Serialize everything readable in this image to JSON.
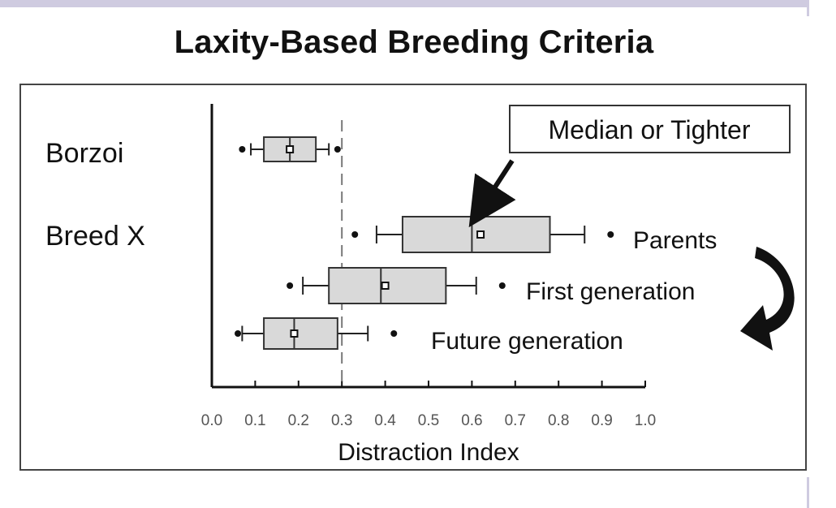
{
  "chart_data": {
    "type": "boxplot",
    "title": "Laxity-Based Breeding Criteria",
    "xlabel": "Distraction Index",
    "xlim": [
      0.0,
      1.0
    ],
    "ticks": [
      "0.0",
      "0.1",
      "0.2",
      "0.3",
      "0.4",
      "0.5",
      "0.6",
      "0.7",
      "0.8",
      "0.9",
      "1.0"
    ],
    "reference_line": 0.3,
    "group_labels": [
      "Borzoi",
      "Breed X"
    ],
    "series": [
      {
        "label": "",
        "group": "Borzoi",
        "outliers_low": [
          0.07
        ],
        "whisker_low": 0.09,
        "q1": 0.12,
        "median": 0.18,
        "mean": 0.18,
        "q3": 0.24,
        "whisker_high": 0.27,
        "outliers_high": [
          0.29
        ]
      },
      {
        "label": "Parents",
        "group": "Breed X",
        "outliers_low": [
          0.33
        ],
        "whisker_low": 0.38,
        "q1": 0.44,
        "median": 0.6,
        "mean": 0.62,
        "q3": 0.78,
        "whisker_high": 0.86,
        "outliers_high": [
          0.92
        ]
      },
      {
        "label": "First generation",
        "group": "Breed X",
        "outliers_low": [
          0.18
        ],
        "whisker_low": 0.21,
        "q1": 0.27,
        "median": 0.39,
        "mean": 0.4,
        "q3": 0.54,
        "whisker_high": 0.61,
        "outliers_high": [
          0.67
        ]
      },
      {
        "label": "Future generation",
        "group": "Breed X",
        "outliers_low": [
          0.06
        ],
        "whisker_low": 0.07,
        "q1": 0.12,
        "median": 0.19,
        "mean": 0.19,
        "q3": 0.29,
        "whisker_high": 0.36,
        "outliers_high": [
          0.42
        ]
      }
    ],
    "annotation": "Median or Tighter"
  }
}
